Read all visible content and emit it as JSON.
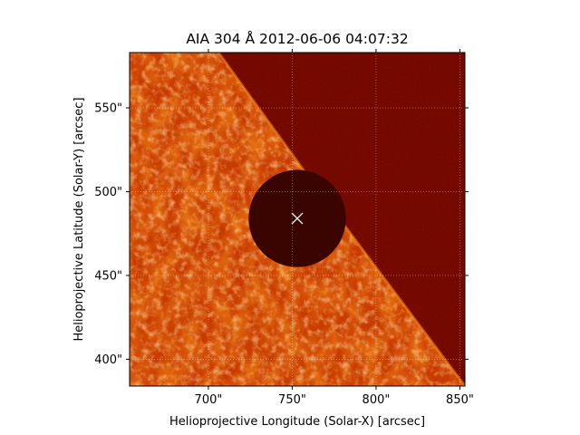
{
  "figure": {
    "title": "AIA 304 Å 2012-06-06 04:07:32",
    "xlabel": "Helioprojective Longitude (Solar-X) [arcsec]",
    "ylabel": "Helioprojective Latitude (Solar-Y) [arcsec]",
    "x_ticks": [
      {
        "value": 700,
        "label": "700\""
      },
      {
        "value": 750,
        "label": "750\""
      },
      {
        "value": 800,
        "label": "800\""
      },
      {
        "value": 850,
        "label": "850\""
      }
    ],
    "y_ticks": [
      {
        "value": 400,
        "label": "400\""
      },
      {
        "value": 450,
        "label": "450\""
      },
      {
        "value": 500,
        "label": "500\""
      },
      {
        "value": 550,
        "label": "550\""
      }
    ],
    "xlim": [
      653,
      853
    ],
    "ylim": [
      384,
      583
    ],
    "grid": "dotted",
    "colormap": {
      "dark": "#4a0200",
      "mid": "#c83a00",
      "bright": "#f38b1a",
      "highlight": "#ffd9a0"
    }
  },
  "image": {
    "subject": "solar limb in AIA 304 with Venus transit disk",
    "venus_disk": {
      "center_x": 753,
      "center_y": 484,
      "radius": 29,
      "color": "#3a0500"
    },
    "marker": {
      "x": 753,
      "y": 484,
      "symbol": "x",
      "color": "#ffffff"
    },
    "limb_line": [
      [
        706,
        583
      ],
      [
        766,
        500
      ],
      [
        853,
        384
      ]
    ],
    "off_disk_color": "#7a0a00"
  }
}
